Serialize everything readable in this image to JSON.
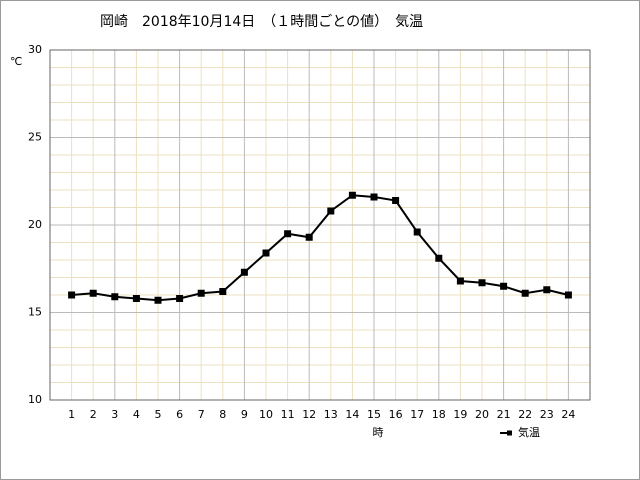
{
  "chart_data": {
    "type": "line",
    "title": "岡崎　2018年10月14日　（１時間ごとの値）　気温",
    "y_unit": "℃",
    "x_label": "時",
    "x": [
      1,
      2,
      3,
      4,
      5,
      6,
      7,
      8,
      9,
      10,
      11,
      12,
      13,
      14,
      15,
      16,
      17,
      18,
      19,
      20,
      21,
      22,
      23,
      24
    ],
    "series": [
      {
        "name": "気温",
        "color": "#000000",
        "values": [
          16.0,
          16.1,
          15.9,
          15.8,
          15.7,
          15.8,
          16.1,
          16.2,
          17.3,
          18.4,
          19.5,
          19.3,
          20.8,
          21.7,
          21.6,
          21.4,
          19.6,
          18.1,
          16.8,
          16.7,
          16.5,
          16.1,
          16.3,
          16.0
        ]
      }
    ],
    "xlim": [
      0,
      25
    ],
    "xticks": [
      1,
      2,
      3,
      4,
      5,
      6,
      7,
      8,
      9,
      10,
      11,
      12,
      13,
      14,
      15,
      16,
      17,
      18,
      19,
      20,
      21,
      22,
      23,
      24
    ],
    "ylim": [
      10,
      30
    ],
    "yticks": [
      10,
      15,
      20,
      25,
      30
    ],
    "minor_yticks": [
      11,
      12,
      13,
      14,
      16,
      17,
      18,
      19,
      21,
      22,
      23,
      24,
      26,
      27,
      28,
      29
    ],
    "grid": true,
    "legend": "bottom-right"
  }
}
